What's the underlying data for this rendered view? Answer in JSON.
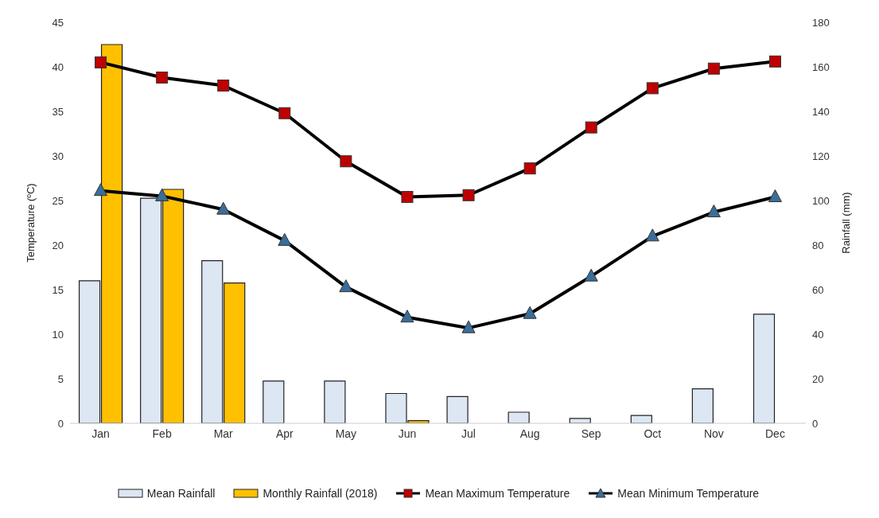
{
  "chart_data": {
    "type": "bar",
    "categories": [
      "Jan",
      "Feb",
      "Mar",
      "Apr",
      "May",
      "Jun",
      "Jul",
      "Aug",
      "Sep",
      "Oct",
      "Nov",
      "Dec"
    ],
    "ylabel": "Temperature (ºC)",
    "y2label": "Rainfall (mm)",
    "ylim": [
      0,
      45
    ],
    "yticks": [
      0,
      5,
      10,
      15,
      20,
      25,
      30,
      35,
      40,
      45
    ],
    "y2lim": [
      0,
      180
    ],
    "y2ticks": [
      0,
      20,
      40,
      60,
      80,
      100,
      120,
      140,
      160,
      180
    ],
    "grid": false,
    "legend": "bottom",
    "series": [
      {
        "name": "Mean Rainfall",
        "axis": "y2",
        "color": "#dde6f3",
        "values": [
          64,
          101,
          73,
          19,
          19,
          13.4,
          12,
          5,
          2.2,
          3.5,
          15.5,
          49
        ]
      },
      {
        "name": "Monthly Rainfall (2018)",
        "axis": "y2",
        "color": "#ffc000",
        "values": [
          170,
          105,
          63,
          0,
          0,
          1.2,
          0,
          0,
          0,
          0,
          0,
          0
        ]
      },
      {
        "name": "Mean Maximum Temperature",
        "type": "line",
        "color": "#c00000",
        "marker": "square",
        "values": [
          40.5,
          38.8,
          37.9,
          34.8,
          29.4,
          25.4,
          25.6,
          28.6,
          33.2,
          37.6,
          39.8,
          40.6
        ]
      },
      {
        "name": "Mean Minimum Temperature",
        "type": "line",
        "color": "#3a6e9a",
        "marker": "triangle",
        "values": [
          26.1,
          25.5,
          24.0,
          20.5,
          15.3,
          11.9,
          10.7,
          12.3,
          16.5,
          21.0,
          23.7,
          25.4
        ]
      }
    ]
  }
}
